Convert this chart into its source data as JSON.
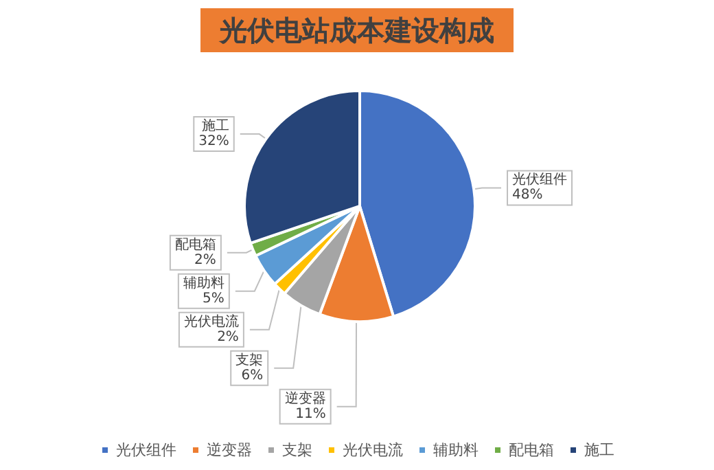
{
  "chart_data": {
    "type": "pie",
    "title": "光伏电站成本建设构成",
    "categories": [
      "光伏组件",
      "逆变器",
      "支架",
      "光伏电流",
      "辅助料",
      "配电箱",
      "施工"
    ],
    "values": [
      48,
      11,
      6,
      2,
      5,
      2,
      32
    ],
    "value_labels": [
      "48%",
      "11%",
      "6%",
      "2%",
      "5%",
      "2%",
      "32%"
    ],
    "colors": [
      "#4472c4",
      "#ed7d31",
      "#a5a5a5",
      "#ffc000",
      "#5b9bd5",
      "#70ad47",
      "#264478"
    ],
    "legend": "bottom"
  }
}
